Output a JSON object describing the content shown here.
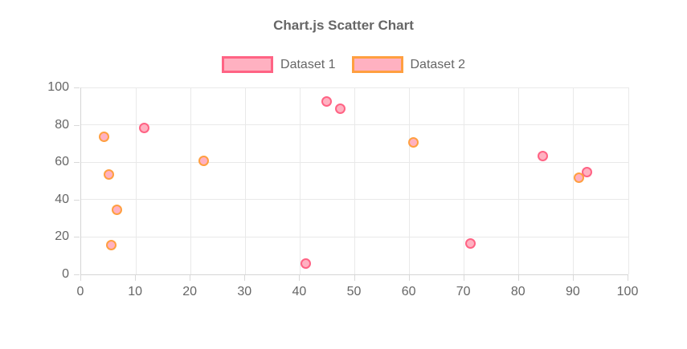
{
  "chart": {
    "title": "Chart.js Scatter Chart",
    "legend": [
      {
        "label": "Dataset 1",
        "border_color": "#ff6384",
        "fill_color": "#ffb1c1"
      },
      {
        "label": "Dataset 2",
        "border_color": "#ff9f40",
        "fill_color": "#ffb1c1"
      }
    ],
    "text_color": "#666666",
    "grid_color": "#e9e9e9",
    "axis_color": "#d5d5d5"
  },
  "chart_data": {
    "type": "scatter",
    "title": "Chart.js Scatter Chart",
    "xlabel": "",
    "ylabel": "",
    "xlim": [
      0,
      100
    ],
    "ylim": [
      0,
      100
    ],
    "x_ticks": [
      0,
      10,
      20,
      30,
      40,
      50,
      60,
      70,
      80,
      90,
      100
    ],
    "y_ticks": [
      0,
      20,
      40,
      60,
      80,
      100
    ],
    "grid": true,
    "legend_position": "top",
    "series": [
      {
        "name": "Dataset 1",
        "border_color": "#ff6384",
        "fill_color": "#ffb1c1",
        "points": [
          {
            "x": 11.5,
            "y": 78.2
          },
          {
            "x": 41.0,
            "y": 5.7
          },
          {
            "x": 44.8,
            "y": 92.3
          },
          {
            "x": 47.3,
            "y": 88.7
          },
          {
            "x": 71.2,
            "y": 16.4
          },
          {
            "x": 84.3,
            "y": 63.3
          },
          {
            "x": 92.5,
            "y": 54.7
          }
        ]
      },
      {
        "name": "Dataset 2",
        "border_color": "#ff9f40",
        "fill_color": "#ffb1c1",
        "points": [
          {
            "x": 4.2,
            "y": 73.7
          },
          {
            "x": 5.0,
            "y": 53.6
          },
          {
            "x": 5.5,
            "y": 15.8
          },
          {
            "x": 6.6,
            "y": 34.4
          },
          {
            "x": 22.4,
            "y": 60.8
          },
          {
            "x": 60.7,
            "y": 70.8
          },
          {
            "x": 91.0,
            "y": 51.6
          }
        ]
      }
    ]
  }
}
